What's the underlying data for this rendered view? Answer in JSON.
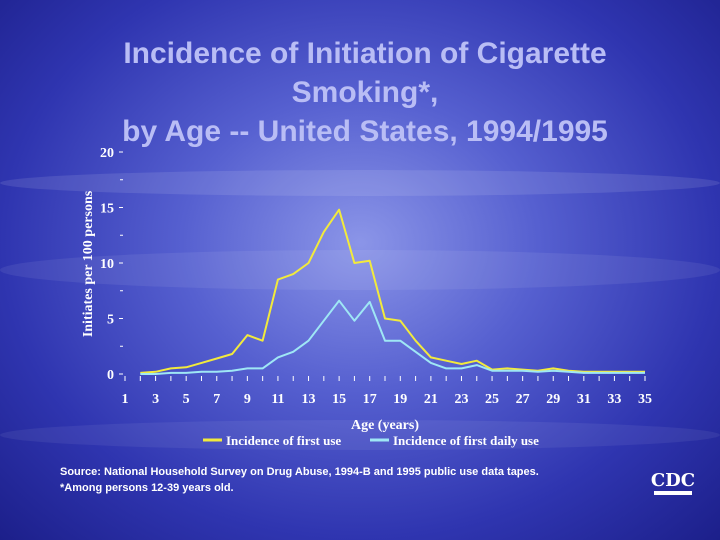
{
  "title": {
    "line1": "Incidence of Initiation of Cigarette",
    "line2": "Smoking*,",
    "line3": "by Age -- United States, 1994/1995"
  },
  "footnote": {
    "source": "Source:  National Household Survey on Drug Abuse, 1994-B and 1995 public use data tapes.",
    "note": "*Among persons 12-39 years old."
  },
  "logo": {
    "text": "CDC"
  },
  "colors": {
    "first_use": "#f2ea3c",
    "first_daily_use": "#9fe7f5",
    "text": "#ffffff",
    "title": "#b9bdf5"
  },
  "chart_data": {
    "type": "line",
    "title": "Incidence of Initiation of Cigarette Smoking*, by Age -- United States, 1994/1995",
    "xlabel": "Age (years)",
    "ylabel": "Initiates per 100 persons",
    "xlim": [
      1,
      35
    ],
    "ylim": [
      0,
      20
    ],
    "x_ticks": [
      1,
      3,
      5,
      7,
      9,
      11,
      13,
      15,
      17,
      19,
      21,
      23,
      25,
      27,
      29,
      31,
      33,
      35
    ],
    "y_ticks": [
      0,
      5,
      10,
      15,
      20
    ],
    "legend_position": "bottom",
    "x": [
      2,
      3,
      4,
      5,
      6,
      7,
      8,
      9,
      10,
      11,
      12,
      13,
      14,
      15,
      16,
      17,
      18,
      19,
      20,
      21,
      22,
      23,
      24,
      25,
      26,
      27,
      28,
      29,
      30,
      31,
      32,
      33,
      34,
      35
    ],
    "series": [
      {
        "name": "Incidence of first use",
        "values": [
          0.1,
          0.2,
          0.5,
          0.6,
          1.0,
          1.4,
          1.8,
          3.5,
          3.0,
          8.5,
          9.0,
          10.0,
          12.8,
          14.8,
          10.0,
          10.2,
          5.0,
          4.8,
          3.0,
          1.5,
          1.2,
          0.9,
          1.2,
          0.4,
          0.5,
          0.4,
          0.3,
          0.5,
          0.3,
          0.2,
          0.2,
          0.2,
          0.2,
          0.2
        ],
        "color": "#f2ea3c"
      },
      {
        "name": "Incidence of first daily use",
        "values": [
          0.0,
          0.0,
          0.1,
          0.1,
          0.2,
          0.2,
          0.3,
          0.5,
          0.5,
          1.5,
          2.0,
          3.0,
          4.8,
          6.6,
          4.8,
          6.5,
          3.0,
          3.0,
          2.0,
          1.0,
          0.5,
          0.5,
          0.8,
          0.3,
          0.3,
          0.3,
          0.2,
          0.3,
          0.2,
          0.1,
          0.1,
          0.1,
          0.1,
          0.1
        ],
        "color": "#9fe7f5"
      }
    ]
  }
}
